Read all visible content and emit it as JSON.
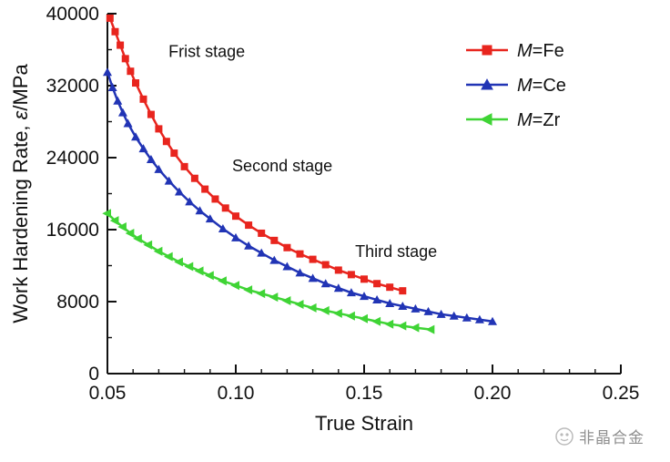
{
  "chart_data": {
    "type": "line",
    "title": "",
    "xlabel": "True Strain",
    "ylabel": "Work Hardening Rate, ε/MPa",
    "ylabel_segments": [
      {
        "text": "Work Hardening Rate, ",
        "italic": false
      },
      {
        "text": "ε",
        "italic": true
      },
      {
        "text": "/MPa",
        "italic": false
      }
    ],
    "xlim": [
      0.05,
      0.25
    ],
    "ylim": [
      0,
      40000
    ],
    "xticks": [
      0.05,
      0.1,
      0.15,
      0.2,
      0.25
    ],
    "xtick_labels": [
      "0.05",
      "0.10",
      "0.15",
      "0.20",
      "0.25"
    ],
    "yticks": [
      0,
      8000,
      16000,
      24000,
      32000,
      40000
    ],
    "ytick_labels": [
      "0",
      "8000",
      "16000",
      "24000",
      "32000",
      "40000"
    ],
    "minor_xtick_step": 0.01,
    "minor_ytick_step": 4000,
    "grid": false,
    "legend_position": "top-right",
    "axis_color": "#111111",
    "series": [
      {
        "name": "M=Fe",
        "color": "#e8251e",
        "marker": "square",
        "x": [
          0.051,
          0.053,
          0.055,
          0.057,
          0.059,
          0.061,
          0.064,
          0.067,
          0.07,
          0.073,
          0.076,
          0.08,
          0.084,
          0.088,
          0.092,
          0.096,
          0.1,
          0.105,
          0.11,
          0.115,
          0.12,
          0.125,
          0.13,
          0.135,
          0.14,
          0.145,
          0.15,
          0.155,
          0.16,
          0.165
        ],
        "y": [
          39500,
          38000,
          36500,
          35000,
          33600,
          32300,
          30500,
          28800,
          27200,
          25800,
          24500,
          23000,
          21700,
          20500,
          19400,
          18400,
          17500,
          16500,
          15600,
          14800,
          14000,
          13300,
          12700,
          12100,
          11500,
          11000,
          10500,
          10000,
          9600,
          9200
        ]
      },
      {
        "name": "M=Ce",
        "color": "#2134b5",
        "marker": "triangle-up",
        "x": [
          0.05,
          0.052,
          0.054,
          0.056,
          0.058,
          0.061,
          0.064,
          0.067,
          0.07,
          0.074,
          0.078,
          0.082,
          0.086,
          0.09,
          0.095,
          0.1,
          0.105,
          0.11,
          0.115,
          0.12,
          0.125,
          0.13,
          0.135,
          0.14,
          0.145,
          0.15,
          0.155,
          0.16,
          0.165,
          0.17,
          0.175,
          0.18,
          0.185,
          0.19,
          0.195,
          0.2
        ],
        "y": [
          33500,
          31800,
          30300,
          29000,
          27800,
          26300,
          25000,
          23800,
          22700,
          21400,
          20200,
          19100,
          18100,
          17200,
          16100,
          15100,
          14200,
          13400,
          12600,
          11900,
          11200,
          10600,
          10000,
          9500,
          9000,
          8600,
          8200,
          7800,
          7500,
          7200,
          6900,
          6600,
          6400,
          6200,
          6000,
          5800
        ]
      },
      {
        "name": "M=Zr",
        "color": "#3fd435",
        "marker": "triangle-left",
        "x": [
          0.05,
          0.053,
          0.056,
          0.059,
          0.062,
          0.066,
          0.07,
          0.074,
          0.078,
          0.082,
          0.086,
          0.09,
          0.095,
          0.1,
          0.105,
          0.11,
          0.115,
          0.12,
          0.125,
          0.13,
          0.135,
          0.14,
          0.145,
          0.15,
          0.155,
          0.16,
          0.165,
          0.17,
          0.176
        ],
        "y": [
          17800,
          17000,
          16300,
          15600,
          15000,
          14300,
          13600,
          13000,
          12400,
          11900,
          11400,
          10900,
          10300,
          9800,
          9300,
          8900,
          8500,
          8100,
          7700,
          7300,
          7000,
          6700,
          6400,
          6100,
          5800,
          5500,
          5300,
          5100,
          4900
        ]
      }
    ],
    "annotations": [
      {
        "text": "Frist stage",
        "x": 0.0738,
        "y": 35200
      },
      {
        "text": "Second stage",
        "x": 0.0986,
        "y": 22500
      },
      {
        "text": "Third stage",
        "x": 0.1465,
        "y": 12950
      }
    ]
  },
  "watermark": {
    "text": "非晶合金"
  }
}
